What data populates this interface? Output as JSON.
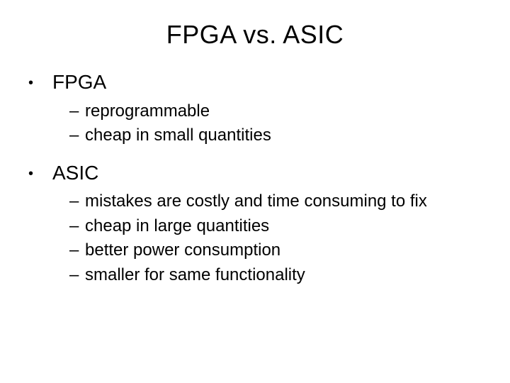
{
  "title": "FPGA vs. ASIC",
  "sections": [
    {
      "heading": "FPGA",
      "items": [
        "reprogrammable",
        "cheap in small quantities"
      ]
    },
    {
      "heading": "ASIC",
      "items": [
        "mistakes are costly and time consuming to fix",
        "cheap in large quantities",
        "better power consumption",
        "smaller for same functionality"
      ]
    }
  ],
  "style": {
    "background_color": "#ffffff",
    "text_color": "#000000",
    "font_family": "Arial",
    "title_fontsize": 36,
    "l1_fontsize": 28,
    "l2_fontsize": 24,
    "bullet_char": "•",
    "dash_char": "–"
  }
}
